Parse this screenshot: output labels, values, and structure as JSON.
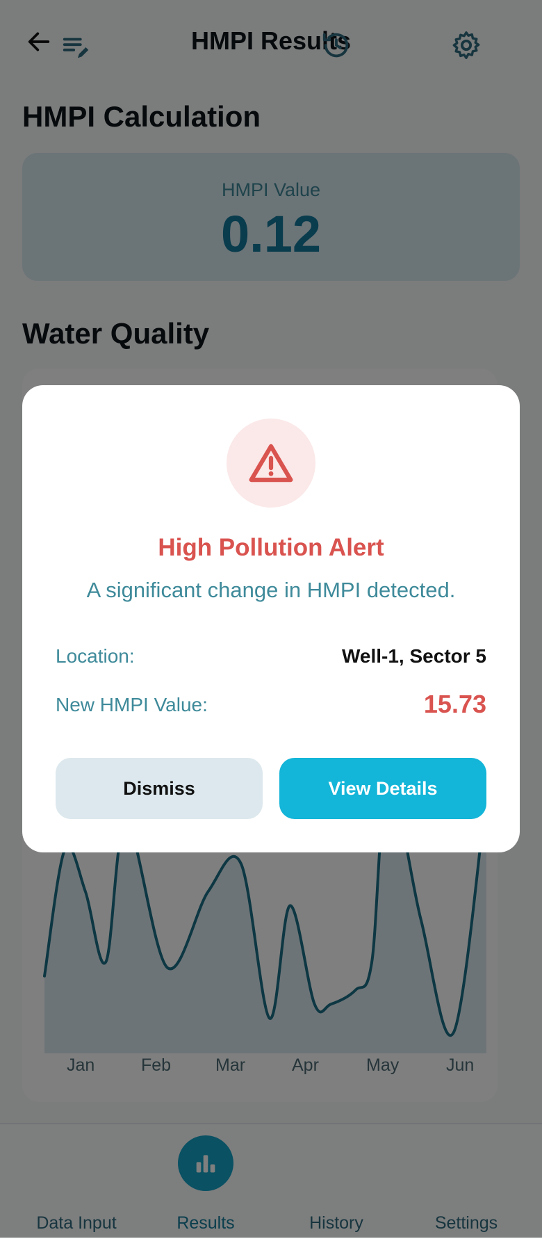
{
  "header": {
    "title": "HMPI Results",
    "back_icon": "arrow-left-icon"
  },
  "calc_section": {
    "title": "HMPI Calculation",
    "value_label": "HMPI Value",
    "value": "0.12"
  },
  "quality_section": {
    "title": "Water Quality"
  },
  "chart_data": {
    "type": "line",
    "categories": [
      "Jan",
      "Feb",
      "Mar",
      "Apr",
      "May",
      "Jun"
    ],
    "x": [
      0,
      0.25,
      0.5,
      0.75,
      1,
      1.5,
      2,
      2.4,
      2.75,
      3,
      3.3,
      3.5,
      3.8,
      4,
      4.2,
      4.6,
      5,
      5.4
    ],
    "values": [
      0.25,
      0.7,
      0.55,
      0.3,
      0.8,
      0.28,
      0.55,
      0.65,
      0.1,
      0.5,
      0.15,
      0.15,
      0.2,
      0.3,
      0.95,
      0.45,
      0.05,
      0.9
    ],
    "color": "#1a6e86",
    "fill_color": "#dbe9ee",
    "grid": false
  },
  "modal": {
    "icon": "warning-triangle-icon",
    "title": "High Pollution Alert",
    "message": "A significant change in HMPI detected.",
    "location_label": "Location:",
    "location_value": "Well-1, Sector 5",
    "new_value_label": "New HMPI Value:",
    "new_value": "15.73",
    "dismiss_label": "Dismiss",
    "view_label": "View Details",
    "accent": "#d9534f",
    "primary": "#13b5d8"
  },
  "nav": {
    "items": [
      {
        "label": "Data Input",
        "icon": "edit-list-icon"
      },
      {
        "label": "Results",
        "icon": "bar-chart-icon",
        "active": true
      },
      {
        "label": "History",
        "icon": "history-icon"
      },
      {
        "label": "Settings",
        "icon": "gear-icon"
      }
    ]
  }
}
